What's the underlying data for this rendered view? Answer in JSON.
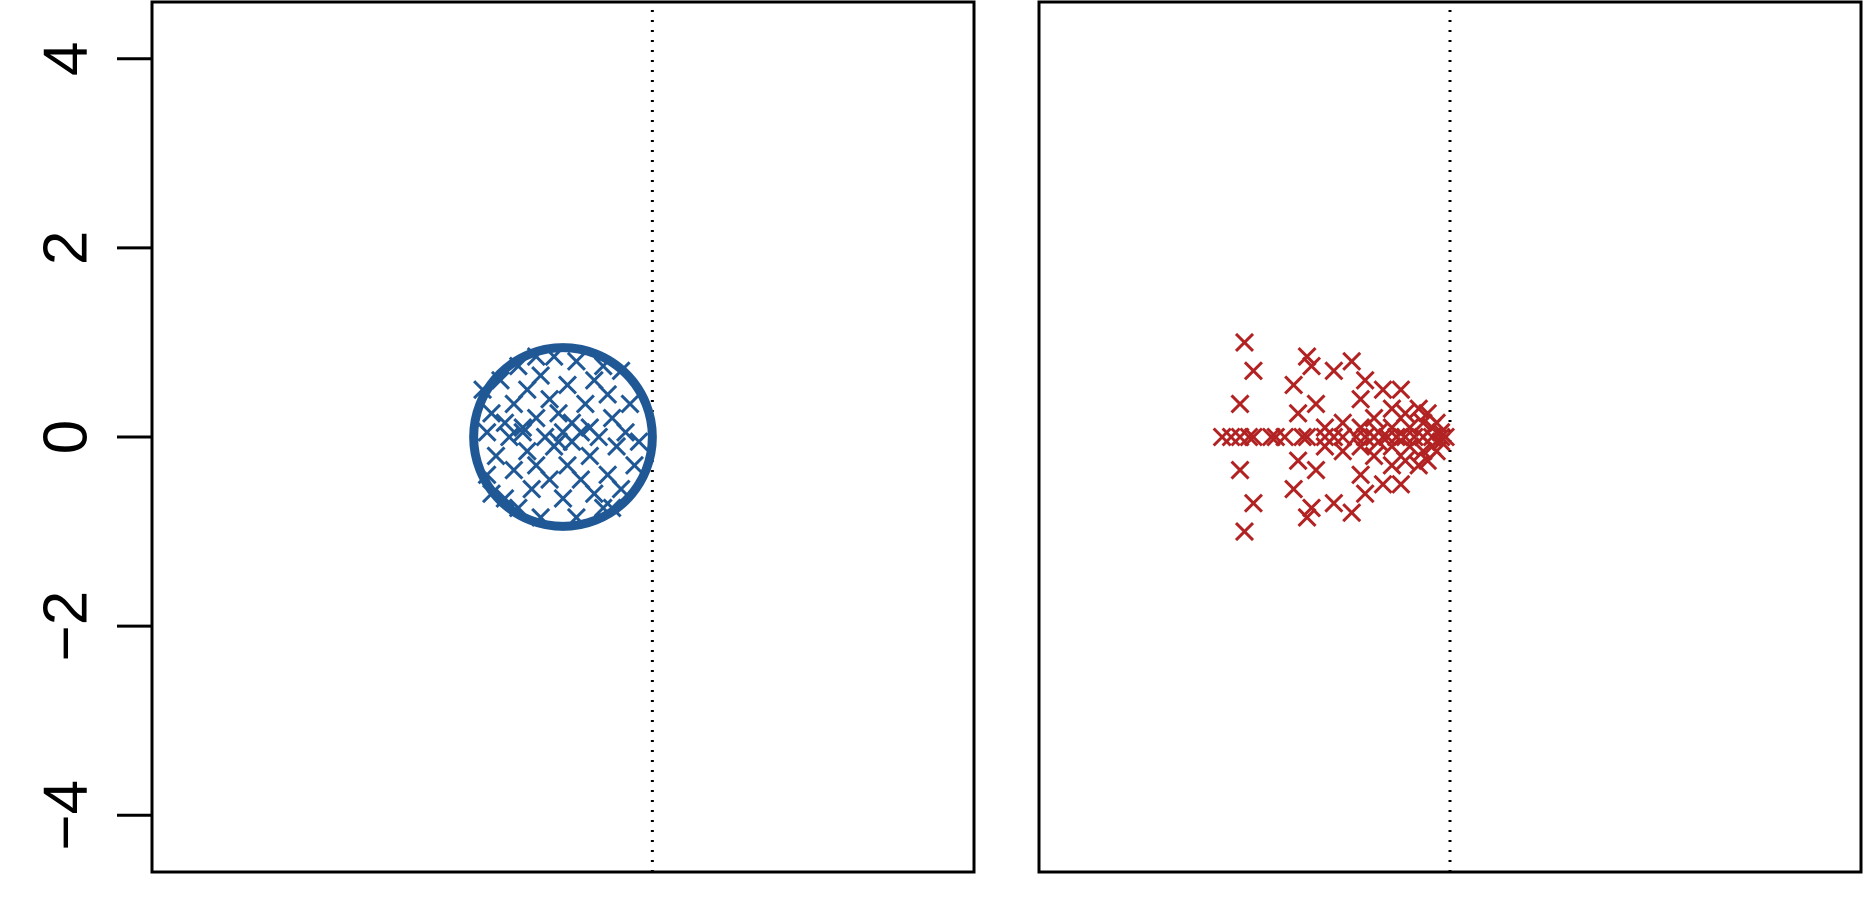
{
  "chart_data": [
    {
      "type": "scatter",
      "panel": "left",
      "xlim": [
        -4.6,
        4.6
      ],
      "ylim": [
        -4.6,
        4.6
      ],
      "y_ticks": [
        -4,
        -2,
        0,
        2,
        4
      ],
      "y_tick_labels": [
        "−4",
        "−2",
        "0",
        "2",
        "4"
      ],
      "grid": false,
      "reference_line": {
        "orientation": "vertical",
        "x": 1,
        "style": "dotted"
      },
      "circle": {
        "center": [
          0,
          0
        ],
        "radius": 1
      },
      "marker": "x",
      "color": "#1F5895",
      "points": [
        [
          -0.9,
          0.5
        ],
        [
          -0.85,
          0.05
        ],
        [
          -0.85,
          -0.4
        ],
        [
          -0.8,
          0.25
        ],
        [
          -0.75,
          -0.2
        ],
        [
          -0.7,
          0.6
        ],
        [
          -0.65,
          -0.65
        ],
        [
          -0.6,
          0.0
        ],
        [
          -0.55,
          0.35
        ],
        [
          -0.55,
          -0.35
        ],
        [
          -0.5,
          0.75
        ],
        [
          -0.5,
          -0.75
        ],
        [
          -0.45,
          0.1
        ],
        [
          -0.4,
          -0.15
        ],
        [
          -0.4,
          0.5
        ],
        [
          -0.35,
          -0.55
        ],
        [
          -0.3,
          0.2
        ],
        [
          -0.3,
          -0.3
        ],
        [
          -0.25,
          0.65
        ],
        [
          -0.25,
          -0.85
        ],
        [
          -0.2,
          0.0
        ],
        [
          -0.15,
          0.4
        ],
        [
          -0.15,
          -0.45
        ],
        [
          -0.1,
          0.85
        ],
        [
          -0.1,
          -0.1
        ],
        [
          -0.05,
          0.25
        ],
        [
          0.0,
          -0.65
        ],
        [
          0.0,
          0.05
        ],
        [
          0.05,
          0.55
        ],
        [
          0.05,
          -0.3
        ],
        [
          0.1,
          0.15
        ],
        [
          0.1,
          -0.05
        ],
        [
          0.15,
          0.8
        ],
        [
          0.15,
          -0.85
        ],
        [
          0.2,
          -0.45
        ],
        [
          0.25,
          0.35
        ],
        [
          0.3,
          -0.2
        ],
        [
          0.35,
          0.6
        ],
        [
          0.35,
          -0.6
        ],
        [
          0.4,
          0.0
        ],
        [
          0.45,
          -0.75
        ],
        [
          0.5,
          0.45
        ],
        [
          0.5,
          -0.4
        ],
        [
          0.55,
          0.2
        ],
        [
          0.6,
          -0.1
        ],
        [
          0.65,
          0.7
        ],
        [
          0.65,
          -0.55
        ],
        [
          0.7,
          0.05
        ],
        [
          0.75,
          0.35
        ],
        [
          0.8,
          -0.3
        ],
        [
          -0.65,
          0.15
        ],
        [
          0.2,
          0.05
        ],
        [
          -0.3,
          0.85
        ],
        [
          0.45,
          0.75
        ],
        [
          -0.8,
          -0.6
        ],
        [
          0.85,
          -0.05
        ],
        [
          0.3,
          0.1
        ],
        [
          -0.05,
          -0.05
        ],
        [
          0.55,
          -0.75
        ],
        [
          -0.45,
          0.05
        ]
      ]
    },
    {
      "type": "scatter",
      "panel": "right",
      "xlim": [
        -4.6,
        4.6
      ],
      "ylim": [
        -4.6,
        4.6
      ],
      "grid": false,
      "reference_line": {
        "orientation": "vertical",
        "x": 0,
        "style": "dotted"
      },
      "marker": "x",
      "color": "#B22222",
      "points": [
        [
          -2.55,
          0.0
        ],
        [
          -2.45,
          0.0
        ],
        [
          -2.35,
          0.0
        ],
        [
          -2.25,
          0.0
        ],
        [
          -2.2,
          0.0
        ],
        [
          -2.0,
          0.0
        ],
        [
          -1.95,
          0.0
        ],
        [
          -1.85,
          0.0
        ],
        [
          -1.65,
          0.0
        ],
        [
          -1.6,
          0.0
        ],
        [
          -1.4,
          0.0
        ],
        [
          -1.3,
          0.0
        ],
        [
          -1.2,
          0.0
        ],
        [
          -1.05,
          0.0
        ],
        [
          -0.95,
          0.0
        ],
        [
          -0.85,
          0.0
        ],
        [
          -0.7,
          0.0
        ],
        [
          -0.6,
          0.0
        ],
        [
          -0.5,
          0.0
        ],
        [
          -0.4,
          0.0
        ],
        [
          -0.3,
          0.0
        ],
        [
          -0.2,
          0.0
        ],
        [
          -0.1,
          0.0
        ],
        [
          -0.05,
          0.0
        ],
        [
          -2.3,
          1.0
        ],
        [
          -2.3,
          -1.0
        ],
        [
          -2.2,
          0.7
        ],
        [
          -2.2,
          -0.7
        ],
        [
          -2.35,
          0.35
        ],
        [
          -2.35,
          -0.35
        ],
        [
          -1.75,
          0.55
        ],
        [
          -1.75,
          -0.55
        ],
        [
          -1.6,
          0.85
        ],
        [
          -1.6,
          -0.85
        ],
        [
          -1.55,
          0.75
        ],
        [
          -1.55,
          -0.75
        ],
        [
          -1.5,
          0.35
        ],
        [
          -1.5,
          -0.35
        ],
        [
          -1.7,
          0.25
        ],
        [
          -1.7,
          -0.25
        ],
        [
          -1.3,
          0.7
        ],
        [
          -1.3,
          -0.7
        ],
        [
          -1.1,
          0.8
        ],
        [
          -1.1,
          -0.8
        ],
        [
          -1.0,
          0.4
        ],
        [
          -1.0,
          -0.4
        ],
        [
          -1.2,
          0.15
        ],
        [
          -1.2,
          -0.15
        ],
        [
          -0.95,
          0.6
        ],
        [
          -0.95,
          -0.6
        ],
        [
          -0.85,
          0.2
        ],
        [
          -0.85,
          -0.2
        ],
        [
          -0.75,
          0.5
        ],
        [
          -0.75,
          -0.5
        ],
        [
          -0.65,
          0.3
        ],
        [
          -0.65,
          -0.3
        ],
        [
          -0.55,
          0.5
        ],
        [
          -0.55,
          -0.5
        ],
        [
          -0.5,
          0.25
        ],
        [
          -0.5,
          -0.25
        ],
        [
          -0.45,
          0.1
        ],
        [
          -0.45,
          -0.1
        ],
        [
          -0.35,
          0.3
        ],
        [
          -0.35,
          -0.3
        ],
        [
          -0.3,
          0.15
        ],
        [
          -0.3,
          -0.15
        ],
        [
          -0.25,
          0.25
        ],
        [
          -0.25,
          -0.25
        ],
        [
          -0.2,
          0.1
        ],
        [
          -0.2,
          -0.1
        ],
        [
          -0.15,
          0.15
        ],
        [
          -0.15,
          -0.15
        ],
        [
          -0.1,
          0.05
        ],
        [
          -0.1,
          -0.05
        ],
        [
          -0.65,
          0.1
        ],
        [
          -0.65,
          -0.1
        ],
        [
          -0.8,
          0.05
        ],
        [
          -0.8,
          -0.05
        ],
        [
          -1.4,
          0.1
        ],
        [
          -1.4,
          -0.1
        ],
        [
          -1.0,
          0.1
        ],
        [
          -1.0,
          -0.1
        ]
      ]
    }
  ]
}
